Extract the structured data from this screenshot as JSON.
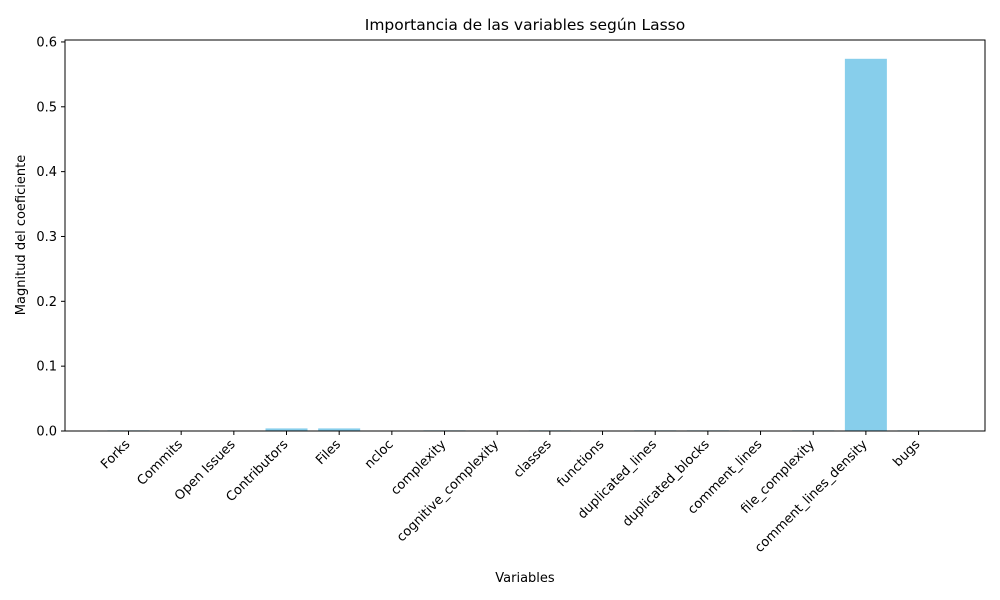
{
  "chart_data": {
    "type": "bar",
    "title": "Importancia de las variables según Lasso",
    "xlabel": "Variables",
    "ylabel": "Magnitud del coeficiente",
    "categories": [
      "Forks",
      "Commits",
      "Open Issues",
      "Contributors",
      "Files",
      "ncloc",
      "complexity",
      "cognitive_complexity",
      "classes",
      "functions",
      "duplicated_lines",
      "duplicated_blocks",
      "comment_lines",
      "file_complexity",
      "comment_lines_density",
      "bugs"
    ],
    "values": [
      0.001,
      0.0,
      0.0,
      0.004,
      0.004,
      0.0,
      0.001,
      0.0,
      0.001,
      0.0,
      0.001,
      0.001,
      0.0,
      0.001,
      0.574,
      0.001
    ],
    "ylim": [
      0,
      0.603
    ],
    "yticks": [
      "0.0",
      "0.1",
      "0.2",
      "0.3",
      "0.4",
      "0.5",
      "0.6"
    ],
    "bar_color": "#87ceeb",
    "grid": false,
    "legend": "none"
  }
}
